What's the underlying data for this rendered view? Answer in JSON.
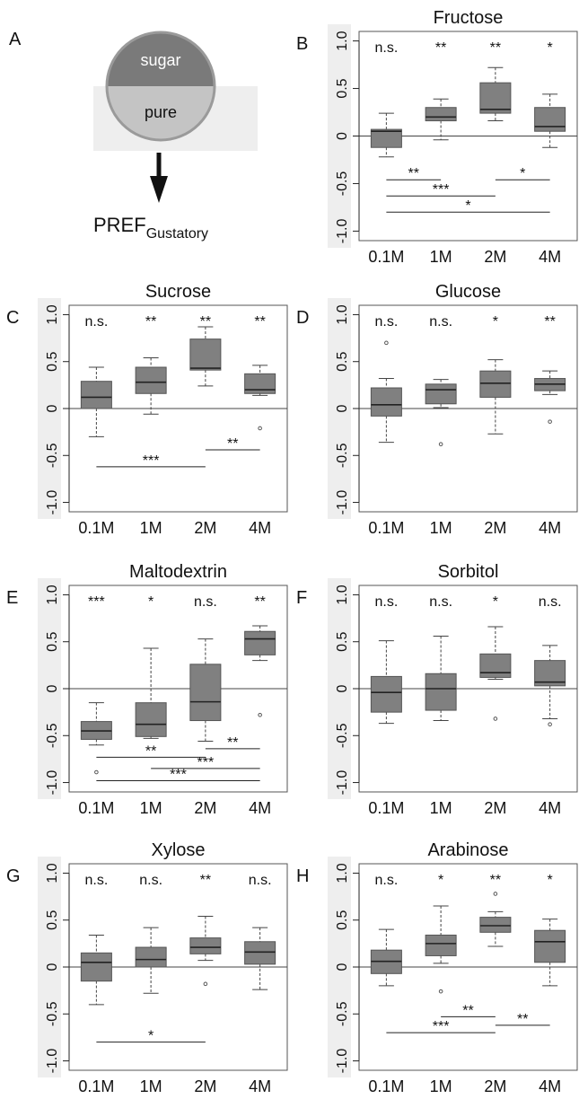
{
  "panel_a": {
    "letter": "A",
    "top_label": "sugar",
    "bottom_label": "pure",
    "pref_main": "PREF",
    "pref_sub": "Gustatory",
    "colors": {
      "top": "#7a7a7a",
      "bottom": "#c4c4c4",
      "backdrop": "#eeeeee",
      "arrow": "#111111"
    }
  },
  "colors": {
    "box": "#808080",
    "box_edge": "#555555",
    "median": "#222222",
    "axis_strip": "#eeeeee"
  },
  "chart_data": [
    {
      "type": "box",
      "panel": "B",
      "title": "Fructose",
      "categories": [
        "0.1M",
        "1M",
        "2M",
        "4M"
      ],
      "ylim": [
        -1.1,
        1.1
      ],
      "yticks": [
        "-1.0",
        "-0.5",
        "0",
        "0.5",
        "1.0"
      ],
      "ytick_values": [
        -1,
        -0.5,
        0,
        0.5,
        1
      ],
      "stats": [
        {
          "whislo": -0.22,
          "q1": -0.12,
          "med": 0.05,
          "q3": 0.07,
          "whishi": 0.24,
          "fliers": []
        },
        {
          "whislo": -0.04,
          "q1": 0.16,
          "med": 0.2,
          "q3": 0.3,
          "whishi": 0.39,
          "fliers": []
        },
        {
          "whislo": 0.16,
          "q1": 0.24,
          "med": 0.28,
          "q3": 0.56,
          "whishi": 0.72,
          "fliers": []
        },
        {
          "whislo": -0.12,
          "q1": 0.05,
          "med": 0.1,
          "q3": 0.3,
          "whishi": 0.44,
          "fliers": []
        }
      ],
      "significance": [
        "n.s.",
        "**",
        "**",
        "*"
      ],
      "comparisons": [
        {
          "from": 0,
          "to": 1,
          "y": -0.46,
          "label": "**"
        },
        {
          "from": 2,
          "to": 3,
          "y": -0.46,
          "label": "*"
        },
        {
          "from": 0,
          "to": 2,
          "y": -0.63,
          "label": "***"
        },
        {
          "from": 0,
          "to": 3,
          "y": -0.8,
          "label": "*"
        }
      ]
    },
    {
      "type": "box",
      "panel": "C",
      "title": "Sucrose",
      "categories": [
        "0.1M",
        "1M",
        "2M",
        "4M"
      ],
      "ylim": [
        -1.1,
        1.1
      ],
      "yticks": [
        "-1.0",
        "-0.5",
        "0",
        "0.5",
        "1.0"
      ],
      "ytick_values": [
        -1,
        -0.5,
        0,
        0.5,
        1
      ],
      "stats": [
        {
          "whislo": -0.3,
          "q1": 0.0,
          "med": 0.12,
          "q3": 0.29,
          "whishi": 0.44,
          "fliers": []
        },
        {
          "whislo": -0.06,
          "q1": 0.16,
          "med": 0.28,
          "q3": 0.44,
          "whishi": 0.54,
          "fliers": []
        },
        {
          "whislo": 0.24,
          "q1": 0.41,
          "med": 0.43,
          "q3": 0.74,
          "whishi": 0.87,
          "fliers": []
        },
        {
          "whislo": 0.14,
          "q1": 0.16,
          "med": 0.2,
          "q3": 0.37,
          "whishi": 0.46,
          "fliers": [
            -0.21
          ]
        }
      ],
      "significance": [
        "n.s.",
        "**",
        "**",
        "**"
      ],
      "comparisons": [
        {
          "from": 2,
          "to": 3,
          "y": -0.44,
          "label": "**"
        },
        {
          "from": 0,
          "to": 2,
          "y": -0.62,
          "label": "***"
        }
      ]
    },
    {
      "type": "box",
      "panel": "D",
      "title": "Glucose",
      "categories": [
        "0.1M",
        "1M",
        "2M",
        "4M"
      ],
      "ylim": [
        -1.1,
        1.1
      ],
      "yticks": [
        "-1.0",
        "-0.5",
        "0",
        "0.5",
        "1.0"
      ],
      "ytick_values": [
        -1,
        -0.5,
        0,
        0.5,
        1
      ],
      "stats": [
        {
          "whislo": -0.36,
          "q1": -0.08,
          "med": 0.04,
          "q3": 0.22,
          "whishi": 0.32,
          "fliers": [
            0.7
          ]
        },
        {
          "whislo": 0.01,
          "q1": 0.05,
          "med": 0.2,
          "q3": 0.26,
          "whishi": 0.31,
          "fliers": [
            -0.38
          ]
        },
        {
          "whislo": -0.27,
          "q1": 0.12,
          "med": 0.27,
          "q3": 0.4,
          "whishi": 0.52,
          "fliers": []
        },
        {
          "whislo": 0.15,
          "q1": 0.19,
          "med": 0.26,
          "q3": 0.32,
          "whishi": 0.4,
          "fliers": [
            -0.14
          ]
        }
      ],
      "significance": [
        "n.s.",
        "n.s.",
        "*",
        "**"
      ],
      "comparisons": []
    },
    {
      "type": "box",
      "panel": "E",
      "title": "Maltodextrin",
      "categories": [
        "0.1M",
        "1M",
        "2M",
        "4M"
      ],
      "ylim": [
        -1.1,
        1.1
      ],
      "yticks": [
        "-1.0",
        "-0.5",
        "0",
        "0.5",
        "1.0"
      ],
      "ytick_values": [
        -1,
        -0.5,
        0,
        0.5,
        1
      ],
      "stats": [
        {
          "whislo": -0.6,
          "q1": -0.54,
          "med": -0.45,
          "q3": -0.35,
          "whishi": -0.15,
          "fliers": [
            -0.89
          ]
        },
        {
          "whislo": -0.53,
          "q1": -0.51,
          "med": -0.38,
          "q3": -0.15,
          "whishi": 0.43,
          "fliers": []
        },
        {
          "whislo": -0.56,
          "q1": -0.34,
          "med": -0.14,
          "q3": 0.26,
          "whishi": 0.53,
          "fliers": []
        },
        {
          "whislo": 0.3,
          "q1": 0.36,
          "med": 0.53,
          "q3": 0.61,
          "whishi": 0.67,
          "fliers": [
            -0.28
          ]
        }
      ],
      "significance": [
        "***",
        "*",
        "n.s.",
        "**"
      ],
      "comparisons": [
        {
          "from": 2,
          "to": 3,
          "y": -0.64,
          "label": "**"
        },
        {
          "from": 0,
          "to": 2,
          "y": -0.73,
          "label": "**"
        },
        {
          "from": 1,
          "to": 3,
          "y": -0.85,
          "label": "***"
        },
        {
          "from": 0,
          "to": 3,
          "y": -0.98,
          "label": "***"
        }
      ]
    },
    {
      "type": "box",
      "panel": "F",
      "title": "Sorbitol",
      "categories": [
        "0.1M",
        "1M",
        "2M",
        "4M"
      ],
      "ylim": [
        -1.1,
        1.1
      ],
      "yticks": [
        "-1.0",
        "-0.5",
        "0",
        "0.5",
        "1.0"
      ],
      "ytick_values": [
        -1,
        -0.5,
        0,
        0.5,
        1
      ],
      "stats": [
        {
          "whislo": -0.37,
          "q1": -0.25,
          "med": -0.04,
          "q3": 0.13,
          "whishi": 0.51,
          "fliers": []
        },
        {
          "whislo": -0.34,
          "q1": -0.23,
          "med": 0.0,
          "q3": 0.16,
          "whishi": 0.56,
          "fliers": []
        },
        {
          "whislo": 0.1,
          "q1": 0.12,
          "med": 0.17,
          "q3": 0.37,
          "whishi": 0.66,
          "fliers": [
            -0.32
          ]
        },
        {
          "whislo": -0.32,
          "q1": 0.03,
          "med": 0.07,
          "q3": 0.3,
          "whishi": 0.46,
          "fliers": [
            -0.38
          ]
        }
      ],
      "significance": [
        "n.s.",
        "n.s.",
        "*",
        "n.s."
      ],
      "comparisons": []
    },
    {
      "type": "box",
      "panel": "G",
      "title": "Xylose",
      "categories": [
        "0.1M",
        "1M",
        "2M",
        "4M"
      ],
      "ylim": [
        -1.1,
        1.1
      ],
      "yticks": [
        "-1.0",
        "-0.5",
        "0",
        "0.5",
        "1.0"
      ],
      "ytick_values": [
        -1,
        -0.5,
        0,
        0.5,
        1
      ],
      "stats": [
        {
          "whislo": -0.4,
          "q1": -0.15,
          "med": 0.05,
          "q3": 0.15,
          "whishi": 0.34,
          "fliers": []
        },
        {
          "whislo": -0.28,
          "q1": 0.0,
          "med": 0.08,
          "q3": 0.21,
          "whishi": 0.42,
          "fliers": []
        },
        {
          "whislo": 0.07,
          "q1": 0.14,
          "med": 0.21,
          "q3": 0.31,
          "whishi": 0.54,
          "fliers": [
            -0.18
          ]
        },
        {
          "whislo": -0.24,
          "q1": 0.03,
          "med": 0.16,
          "q3": 0.27,
          "whishi": 0.42,
          "fliers": []
        }
      ],
      "significance": [
        "n.s.",
        "n.s.",
        "**",
        "n.s."
      ],
      "comparisons": [
        {
          "from": 0,
          "to": 2,
          "y": -0.8,
          "label": "*"
        }
      ]
    },
    {
      "type": "box",
      "panel": "H",
      "title": "Arabinose",
      "categories": [
        "0.1M",
        "1M",
        "2M",
        "4M"
      ],
      "ylim": [
        -1.1,
        1.1
      ],
      "yticks": [
        "-1.0",
        "-0.5",
        "0",
        "0.5",
        "1.0"
      ],
      "ytick_values": [
        -1,
        -0.5,
        0,
        0.5,
        1
      ],
      "stats": [
        {
          "whislo": -0.2,
          "q1": -0.07,
          "med": 0.06,
          "q3": 0.18,
          "whishi": 0.4,
          "fliers": []
        },
        {
          "whislo": 0.04,
          "q1": 0.12,
          "med": 0.25,
          "q3": 0.34,
          "whishi": 0.65,
          "fliers": [
            -0.26
          ]
        },
        {
          "whislo": 0.22,
          "q1": 0.37,
          "med": 0.44,
          "q3": 0.53,
          "whishi": 0.59,
          "fliers": [
            0.78
          ]
        },
        {
          "whislo": -0.2,
          "q1": 0.05,
          "med": 0.27,
          "q3": 0.39,
          "whishi": 0.51,
          "fliers": []
        }
      ],
      "significance": [
        "n.s.",
        "*",
        "**",
        "*"
      ],
      "comparisons": [
        {
          "from": 1,
          "to": 2,
          "y": -0.53,
          "label": "**"
        },
        {
          "from": 2,
          "to": 3,
          "y": -0.62,
          "label": "**"
        },
        {
          "from": 0,
          "to": 2,
          "y": -0.7,
          "label": "***"
        }
      ]
    }
  ]
}
